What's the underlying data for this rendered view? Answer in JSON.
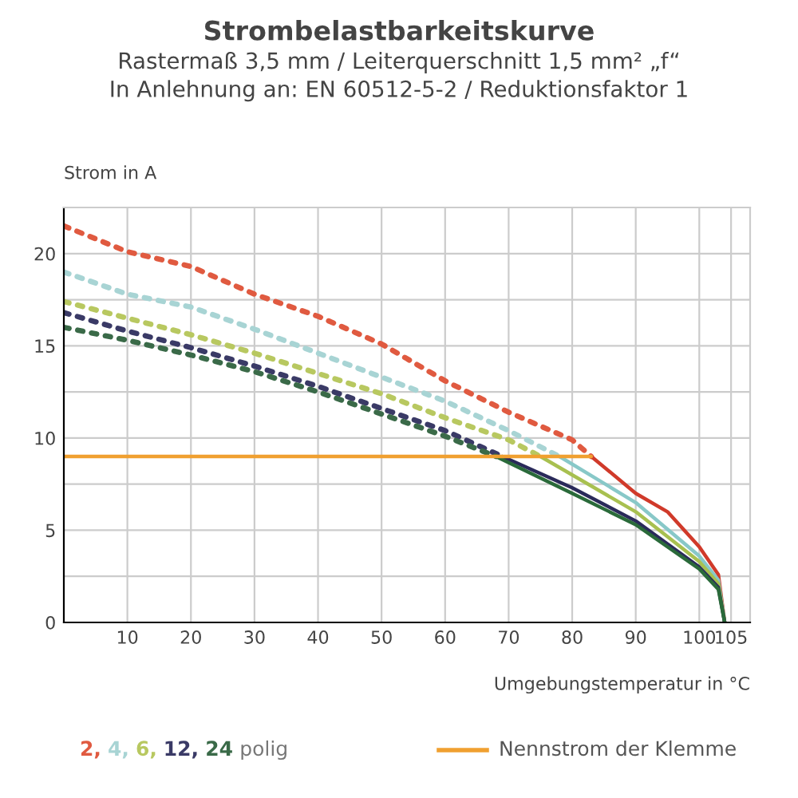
{
  "chart_data": {
    "type": "line",
    "title": "Strombelastbarkeitskurve",
    "subtitle": "Rastermaß 3,5 mm / Leiterquerschnitt 1,5 mm² „f“\nIn Anlehnung an: EN 60512-5-2 / Reduktionsfaktor 1",
    "xlabel": "Umgebungstemperatur in °C",
    "ylabel": "Strom in A",
    "annotations": [
      "polig"
    ],
    "xlim": [
      0,
      108
    ],
    "xticks": [
      10,
      20,
      30,
      40,
      50,
      60,
      70,
      80,
      90,
      100,
      105
    ],
    "ylim": [
      0,
      22.5
    ],
    "yticks": [
      0,
      {
        "value": 2.5,
        "label": null
      },
      5,
      {
        "value": 7.5,
        "label": null
      },
      10,
      {
        "value": 12.5,
        "label": null
      },
      15,
      {
        "value": 17.5,
        "label": null
      },
      20
    ],
    "grid": true,
    "legend": "bottom",
    "marker": "none",
    "series": [
      {
        "name": "2,",
        "color": "#e05a40",
        "line_style": "dotted",
        "x": [
          0,
          10,
          20,
          30,
          40,
          50,
          60,
          70,
          80,
          83
        ],
        "values": [
          21.5,
          20.1,
          19.3,
          17.8,
          16.6,
          15.1,
          13.1,
          11.4,
          9.9,
          9
        ]
      },
      {
        "name": "4,",
        "color": "#a8d4d4",
        "line_style": "dotted",
        "x": [
          0,
          10,
          20,
          30,
          40,
          50,
          60,
          70,
          78
        ],
        "values": [
          19,
          17.8,
          17.1,
          15.9,
          14.6,
          13.3,
          12,
          10.4,
          9
        ]
      },
      {
        "name": "6,",
        "color": "#b8c860",
        "line_style": "dotted",
        "x": [
          0,
          10,
          20,
          30,
          40,
          50,
          60,
          70,
          75
        ],
        "values": [
          17.4,
          16.5,
          15.6,
          14.6,
          13.5,
          12.4,
          11.1,
          9.9,
          9
        ]
      },
      {
        "name": "12,",
        "color": "#3a3a66",
        "line_style": "dotted",
        "x": [
          0,
          10,
          20,
          30,
          40,
          50,
          60,
          69
        ],
        "values": [
          16.8,
          15.8,
          14.9,
          13.9,
          12.8,
          11.6,
          10.4,
          9
        ]
      },
      {
        "name": "24",
        "color": "#3a6a48",
        "line_style": "dotted",
        "x": [
          0,
          10,
          20,
          30,
          40,
          50,
          60,
          68
        ],
        "values": [
          16,
          15.3,
          14.5,
          13.6,
          12.5,
          11.3,
          10.1,
          9
        ]
      },
      {
        "color": "#d03a2a",
        "line_style": "solid",
        "x": [
          83,
          90,
          95,
          100,
          103,
          104
        ],
        "values": [
          9,
          7,
          6,
          4.1,
          2.6,
          0
        ]
      },
      {
        "color": "#88c8c8",
        "line_style": "solid",
        "x": [
          78,
          90,
          100,
          103,
          104
        ],
        "values": [
          9,
          6.5,
          3.6,
          2.3,
          0
        ]
      },
      {
        "color": "#a8c050",
        "line_style": "solid",
        "x": [
          75,
          90,
          100,
          103,
          104
        ],
        "values": [
          9,
          6,
          3.3,
          2.1,
          0
        ]
      },
      {
        "color": "#2a2a5a",
        "line_style": "solid",
        "x": [
          69,
          80,
          90,
          100,
          103,
          104
        ],
        "values": [
          9,
          7.3,
          5.5,
          3,
          1.9,
          0
        ]
      },
      {
        "color": "#2a6a3a",
        "line_style": "solid",
        "x": [
          68,
          80,
          90,
          100,
          103,
          104
        ],
        "values": [
          9,
          7,
          5.3,
          2.9,
          1.8,
          0
        ]
      },
      {
        "name": "Nennstrom der Klemme",
        "color": "#f0a030",
        "line_style": "solid",
        "x": [
          0,
          83
        ],
        "values": [
          9,
          9
        ]
      }
    ]
  }
}
